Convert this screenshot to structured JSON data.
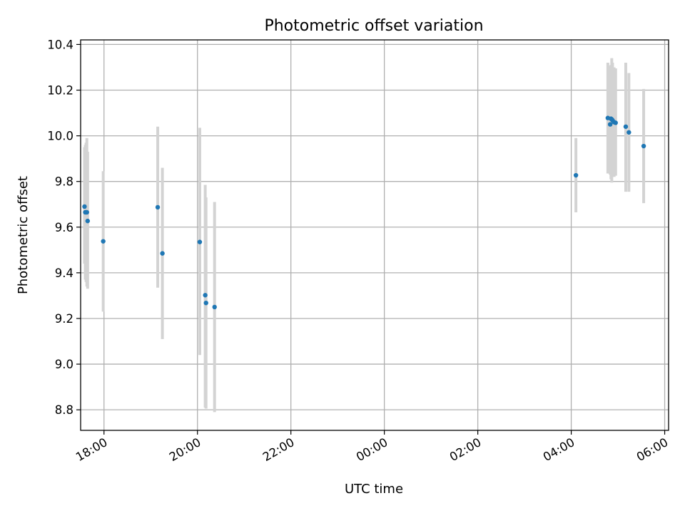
{
  "chart_data": {
    "type": "scatter",
    "title": "Photometric offset variation",
    "xlabel": "UTC time",
    "ylabel": "Photometric offset",
    "grid": true,
    "xlim": [
      "17:30",
      "06:05"
    ],
    "ylim": [
      8.71,
      10.42
    ],
    "x_ticks": [
      "18:00",
      "20:00",
      "22:00",
      "00:00",
      "02:00",
      "04:00",
      "06:00"
    ],
    "y_ticks": [
      "8.8",
      "9.0",
      "9.2",
      "9.4",
      "9.6",
      "9.8",
      "10.0",
      "10.2",
      "10.4"
    ],
    "marker_color": "#1f77b4",
    "errorbar_color": "#d3d3d3",
    "points": [
      {
        "t": "17:35",
        "y": 9.69,
        "lo": 9.44,
        "hi": 9.95
      },
      {
        "t": "17:36",
        "y": 9.665,
        "lo": 9.37,
        "hi": 9.96
      },
      {
        "t": "17:37",
        "y": 9.665,
        "lo": 9.36,
        "hi": 9.97
      },
      {
        "t": "17:38",
        "y": 9.665,
        "lo": 9.34,
        "hi": 9.99
      },
      {
        "t": "17:39",
        "y": 9.627,
        "lo": 9.33,
        "hi": 9.93
      },
      {
        "t": "17:59",
        "y": 9.538,
        "lo": 9.23,
        "hi": 9.845
      },
      {
        "t": "19:09",
        "y": 9.687,
        "lo": 9.335,
        "hi": 10.04
      },
      {
        "t": "19:15",
        "y": 9.485,
        "lo": 9.11,
        "hi": 9.86
      },
      {
        "t": "20:03",
        "y": 9.535,
        "lo": 9.04,
        "hi": 10.035
      },
      {
        "t": "20:10",
        "y": 9.302,
        "lo": 8.81,
        "hi": 9.785
      },
      {
        "t": "20:11",
        "y": 9.268,
        "lo": 8.805,
        "hi": 9.73
      },
      {
        "t": "20:22",
        "y": 9.25,
        "lo": 8.79,
        "hi": 9.71
      },
      {
        "t": "04:06",
        "y": 9.827,
        "lo": 9.665,
        "hi": 9.99
      },
      {
        "t": "04:47",
        "y": 10.078,
        "lo": 9.835,
        "hi": 10.32
      },
      {
        "t": "04:50",
        "y": 10.05,
        "lo": 9.83,
        "hi": 10.305
      },
      {
        "t": "04:51",
        "y": 10.075,
        "lo": 9.81,
        "hi": 10.31
      },
      {
        "t": "04:52",
        "y": 10.072,
        "lo": 9.795,
        "hi": 10.34
      },
      {
        "t": "04:53",
        "y": 10.068,
        "lo": 9.82,
        "hi": 10.32
      },
      {
        "t": "04:55",
        "y": 10.06,
        "lo": 9.82,
        "hi": 10.3
      },
      {
        "t": "04:57",
        "y": 10.057,
        "lo": 9.825,
        "hi": 10.295
      },
      {
        "t": "05:10",
        "y": 10.04,
        "lo": 9.755,
        "hi": 10.32
      },
      {
        "t": "05:14",
        "y": 10.015,
        "lo": 9.755,
        "hi": 10.275
      },
      {
        "t": "05:33",
        "y": 9.955,
        "lo": 9.705,
        "hi": 10.205
      }
    ]
  }
}
